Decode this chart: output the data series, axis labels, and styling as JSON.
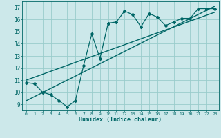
{
  "title": "",
  "xlabel": "Humidex (Indice chaleur)",
  "xlim": [
    -0.5,
    23.5
  ],
  "ylim": [
    8.5,
    17.5
  ],
  "yticks": [
    9,
    10,
    11,
    12,
    13,
    14,
    15,
    16,
    17
  ],
  "xticks": [
    0,
    1,
    2,
    3,
    4,
    5,
    6,
    7,
    8,
    9,
    10,
    11,
    12,
    13,
    14,
    15,
    16,
    17,
    18,
    19,
    20,
    21,
    22,
    23
  ],
  "bg_color": "#cce8ea",
  "grid_color": "#99cccc",
  "line_color": "#006666",
  "data_x": [
    0,
    1,
    2,
    3,
    4,
    5,
    6,
    7,
    8,
    9,
    10,
    11,
    12,
    13,
    14,
    15,
    16,
    17,
    18,
    19,
    20,
    21,
    22,
    23
  ],
  "data_y": [
    10.8,
    10.7,
    10.0,
    9.8,
    9.3,
    8.8,
    9.3,
    12.2,
    14.8,
    12.8,
    15.7,
    15.8,
    16.7,
    16.4,
    15.4,
    16.5,
    16.2,
    15.5,
    15.8,
    16.1,
    16.1,
    16.9,
    16.9,
    16.9
  ],
  "trend1_x": [
    0,
    23
  ],
  "trend1_y": [
    11.0,
    16.6
  ],
  "trend2_x": [
    0,
    23
  ],
  "trend2_y": [
    9.3,
    17.1
  ]
}
